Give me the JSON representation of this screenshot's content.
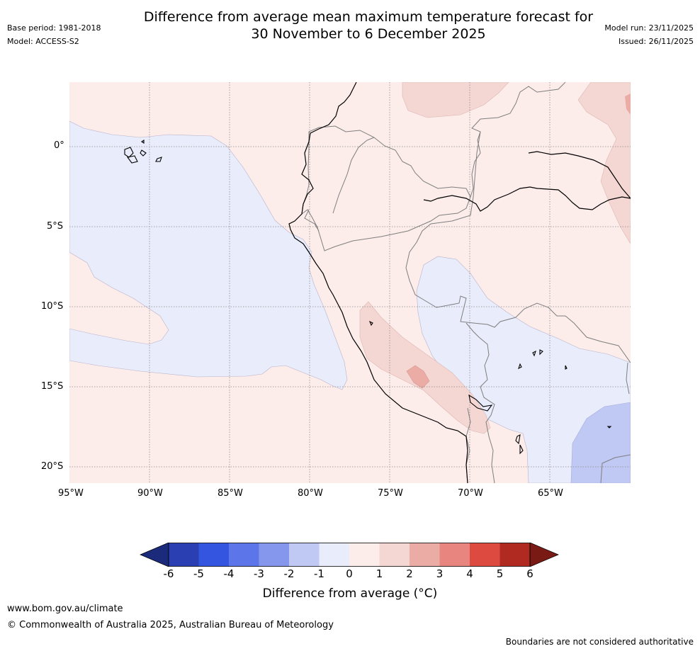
{
  "header": {
    "title_line1": "Difference from average mean maximum temperature forecast for",
    "title_line2": "30 November to 6 December 2025",
    "base_period": "Base period: 1981-2018",
    "model": "Model: ACCESS-S2",
    "model_run": "Model run: 23/11/2025",
    "issued": "Issued: 26/11/2025"
  },
  "map": {
    "lat_labels": [
      "0°",
      "5°S",
      "10°S",
      "15°S",
      "20°S"
    ],
    "lon_labels": [
      "95°W",
      "90°W",
      "85°W",
      "80°W",
      "75°W",
      "70°W",
      "65°W"
    ]
  },
  "colorbar": {
    "ticks": [
      "-6",
      "-5",
      "-4",
      "-3",
      "-2",
      "-1",
      "0",
      "1",
      "2",
      "3",
      "4",
      "5",
      "6"
    ],
    "colors": [
      "#1b2a7a",
      "#2a3fb2",
      "#3355e0",
      "#5c75e8",
      "#8497ec",
      "#c0c8f4",
      "#e8ecfb",
      "#fcecea",
      "#f4d6d2",
      "#ecaca6",
      "#e8857e",
      "#dc4a40",
      "#b12a22",
      "#7a1a14"
    ],
    "title": "Difference from average (°C)"
  },
  "footer": {
    "url": "www.bom.gov.au/climate",
    "copyright": "© Commonwealth of Australia 2025, Australian Bureau of Meteorology",
    "disclaimer": "Boundaries are not considered authoritative"
  }
}
